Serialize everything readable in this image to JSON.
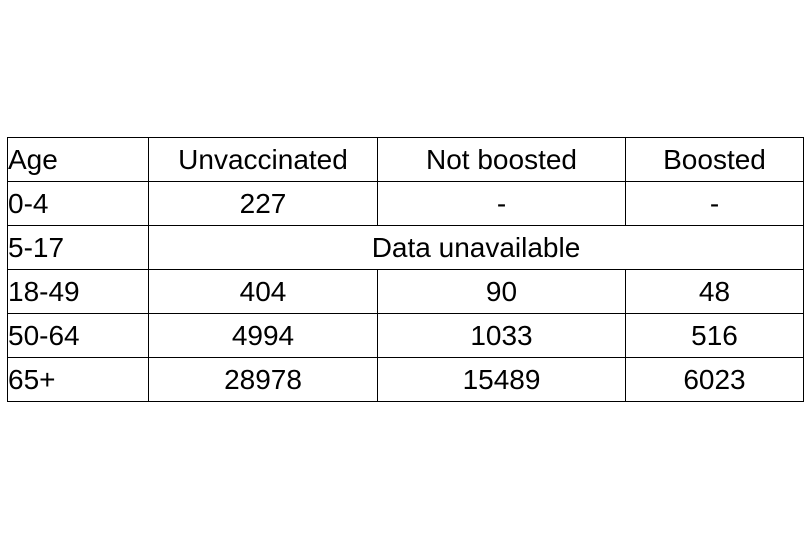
{
  "table": {
    "headers": [
      "Age",
      "Unvaccinated",
      "Not boosted",
      "Boosted"
    ],
    "rows": [
      {
        "age": "0-4",
        "unvaccinated": "227",
        "not_boosted": "-",
        "boosted": "-"
      },
      {
        "age": "5-17",
        "merged": "Data unavailable"
      },
      {
        "age": "18-49",
        "unvaccinated": "404",
        "not_boosted": "90",
        "boosted": "48"
      },
      {
        "age": "50-64",
        "unvaccinated": "4994",
        "not_boosted": "1033",
        "boosted": "516"
      },
      {
        "age": "65+",
        "unvaccinated": "28978",
        "not_boosted": "15489",
        "boosted": "6023"
      }
    ]
  }
}
